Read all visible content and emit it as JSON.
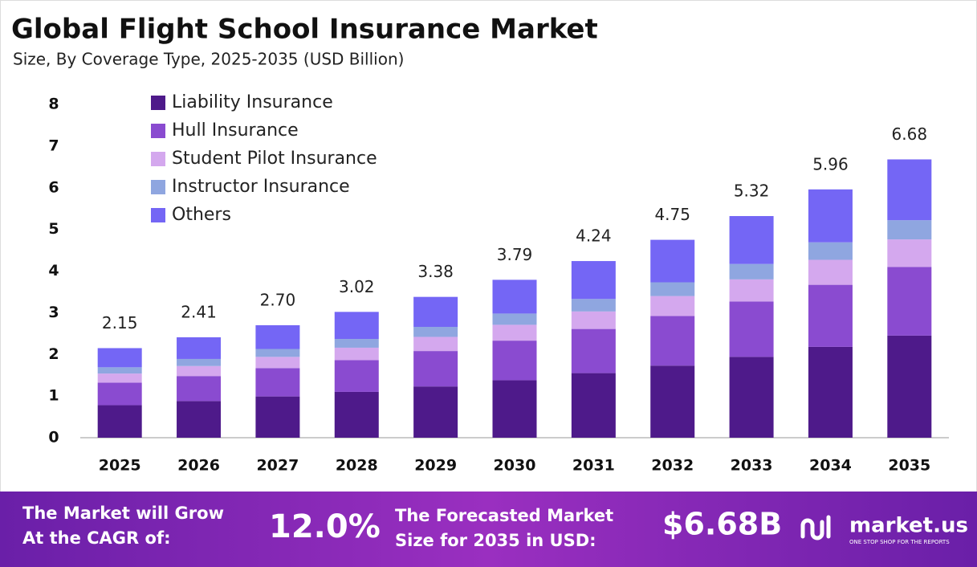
{
  "chart_data": {
    "type": "stacked-bar",
    "title": "Global Flight School Insurance Market",
    "subtitle": "Size, By Coverage Type, 2025-2035 (USD Billion)",
    "categories": [
      "2025",
      "2026",
      "2027",
      "2028",
      "2029",
      "2030",
      "2031",
      "2032",
      "2033",
      "2034",
      "2035"
    ],
    "series": [
      {
        "name": "Liability Insurance",
        "color": "#4e1a8a",
        "values": [
          0.78,
          0.88,
          0.99,
          1.1,
          1.23,
          1.38,
          1.55,
          1.73,
          1.94,
          2.18,
          2.45
        ]
      },
      {
        "name": "Hull Insurance",
        "color": "#8a4bd0",
        "values": [
          0.54,
          0.6,
          0.68,
          0.76,
          0.85,
          0.95,
          1.06,
          1.19,
          1.33,
          1.49,
          1.65
        ]
      },
      {
        "name": "Student Pilot Insurance",
        "color": "#d4a8ee",
        "values": [
          0.22,
          0.24,
          0.27,
          0.3,
          0.34,
          0.38,
          0.42,
          0.48,
          0.53,
          0.6,
          0.66
        ]
      },
      {
        "name": "Instructor Insurance",
        "color": "#8fa6e0",
        "values": [
          0.15,
          0.17,
          0.19,
          0.21,
          0.24,
          0.27,
          0.3,
          0.33,
          0.37,
          0.42,
          0.46
        ]
      },
      {
        "name": "Others",
        "color": "#7466f5",
        "values": [
          0.46,
          0.52,
          0.57,
          0.65,
          0.72,
          0.81,
          0.91,
          1.02,
          1.15,
          1.27,
          1.46
        ]
      }
    ],
    "totals": [
      2.15,
      2.41,
      2.7,
      3.02,
      3.38,
      3.79,
      4.24,
      4.75,
      5.32,
      5.96,
      6.68
    ],
    "totals_labels": [
      "2.15",
      "2.41",
      "2.70",
      "3.02",
      "3.38",
      "3.79",
      "4.24",
      "4.75",
      "5.32",
      "5.96",
      "6.68"
    ],
    "ylim": [
      0,
      8
    ],
    "yticks": [
      0,
      1,
      2,
      3,
      4,
      5,
      6,
      7,
      8
    ],
    "grid": false,
    "legend": "top-left"
  },
  "footer": {
    "cagr_text": [
      "The Market will Grow",
      "At the CAGR of:"
    ],
    "cagr_value": "12.0%",
    "forecast_text": [
      "The Forecasted Market",
      "Size for 2035 in USD:"
    ],
    "forecast_value": "$6.68B",
    "brand": "market.us",
    "tagline": "ONE STOP SHOP FOR THE REPORTS"
  }
}
